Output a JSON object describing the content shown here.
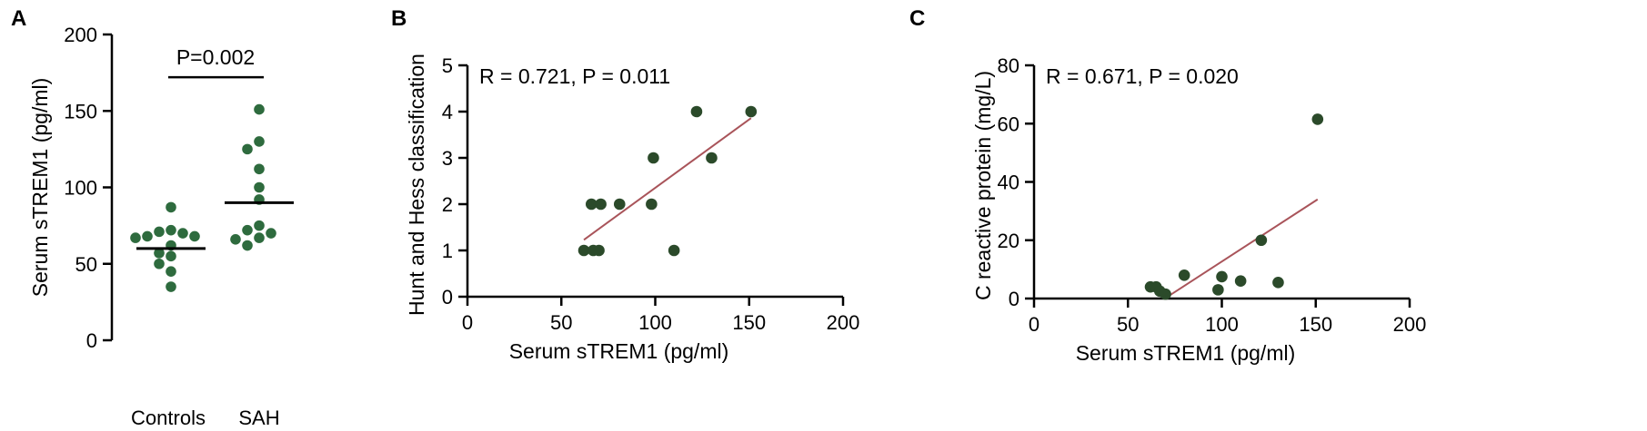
{
  "colors": {
    "dot_a": "#2e6b3e",
    "dot_bc": "#2b4a2a",
    "fit": "#a9545a",
    "axis": "#000000"
  },
  "chart_data": [
    {
      "panel": "A",
      "type": "scatter",
      "ylabel": "Serum sTREM1 (pg/ml)",
      "xlabel": "",
      "categories": [
        "Controls",
        "SAH"
      ],
      "ylim": [
        0,
        200
      ],
      "yticks": [
        0,
        50,
        100,
        150,
        200
      ],
      "annotation": "P=0.002",
      "series": [
        {
          "category": "Controls",
          "mean": 60,
          "points": [
            87,
            72,
            71,
            70,
            68,
            68,
            67,
            62,
            57,
            55,
            50,
            45,
            35
          ]
        },
        {
          "category": "SAH",
          "mean": 90,
          "points": [
            151,
            130,
            125,
            112,
            100,
            92,
            75,
            72,
            70,
            67,
            66,
            62
          ]
        }
      ]
    },
    {
      "panel": "B",
      "type": "scatter",
      "xlabel": "Serum sTREM1 (pg/ml)",
      "ylabel": "Hunt and Hess classification",
      "xlim": [
        0,
        200
      ],
      "ylim": [
        0,
        5
      ],
      "xticks": [
        0,
        50,
        100,
        150,
        200
      ],
      "yticks": [
        0,
        1,
        2,
        3,
        4,
        5
      ],
      "annotation": "R = 0.721, P = 0.011",
      "points": [
        {
          "x": 62,
          "y": 1
        },
        {
          "x": 67,
          "y": 1
        },
        {
          "x": 70,
          "y": 1
        },
        {
          "x": 66,
          "y": 2
        },
        {
          "x": 71,
          "y": 2
        },
        {
          "x": 81,
          "y": 2
        },
        {
          "x": 98,
          "y": 2
        },
        {
          "x": 99,
          "y": 3
        },
        {
          "x": 110,
          "y": 1
        },
        {
          "x": 122,
          "y": 4
        },
        {
          "x": 130,
          "y": 3
        },
        {
          "x": 151,
          "y": 4
        }
      ],
      "fit_line": [
        {
          "x": 62,
          "y": 1.23
        },
        {
          "x": 151,
          "y": 3.86
        }
      ]
    },
    {
      "panel": "C",
      "type": "scatter",
      "xlabel": "Serum sTREM1 (pg/ml)",
      "ylabel": "C reactive protein (mg/L)",
      "xlim": [
        0,
        200
      ],
      "ylim": [
        0,
        80
      ],
      "xticks": [
        0,
        50,
        100,
        150,
        200
      ],
      "yticks": [
        0,
        20,
        40,
        60,
        80
      ],
      "annotation": "R = 0.671, P = 0.020",
      "points": [
        {
          "x": 62,
          "y": 4
        },
        {
          "x": 65,
          "y": 4
        },
        {
          "x": 67,
          "y": 2.5
        },
        {
          "x": 70,
          "y": 1.5
        },
        {
          "x": 80,
          "y": 8
        },
        {
          "x": 98,
          "y": 3
        },
        {
          "x": 100,
          "y": 7.5
        },
        {
          "x": 110,
          "y": 6
        },
        {
          "x": 121,
          "y": 20
        },
        {
          "x": 130,
          "y": 5.5
        },
        {
          "x": 151,
          "y": 61.5
        }
      ],
      "fit_line": [
        {
          "x": 72,
          "y": 1
        },
        {
          "x": 151,
          "y": 34
        }
      ]
    }
  ]
}
